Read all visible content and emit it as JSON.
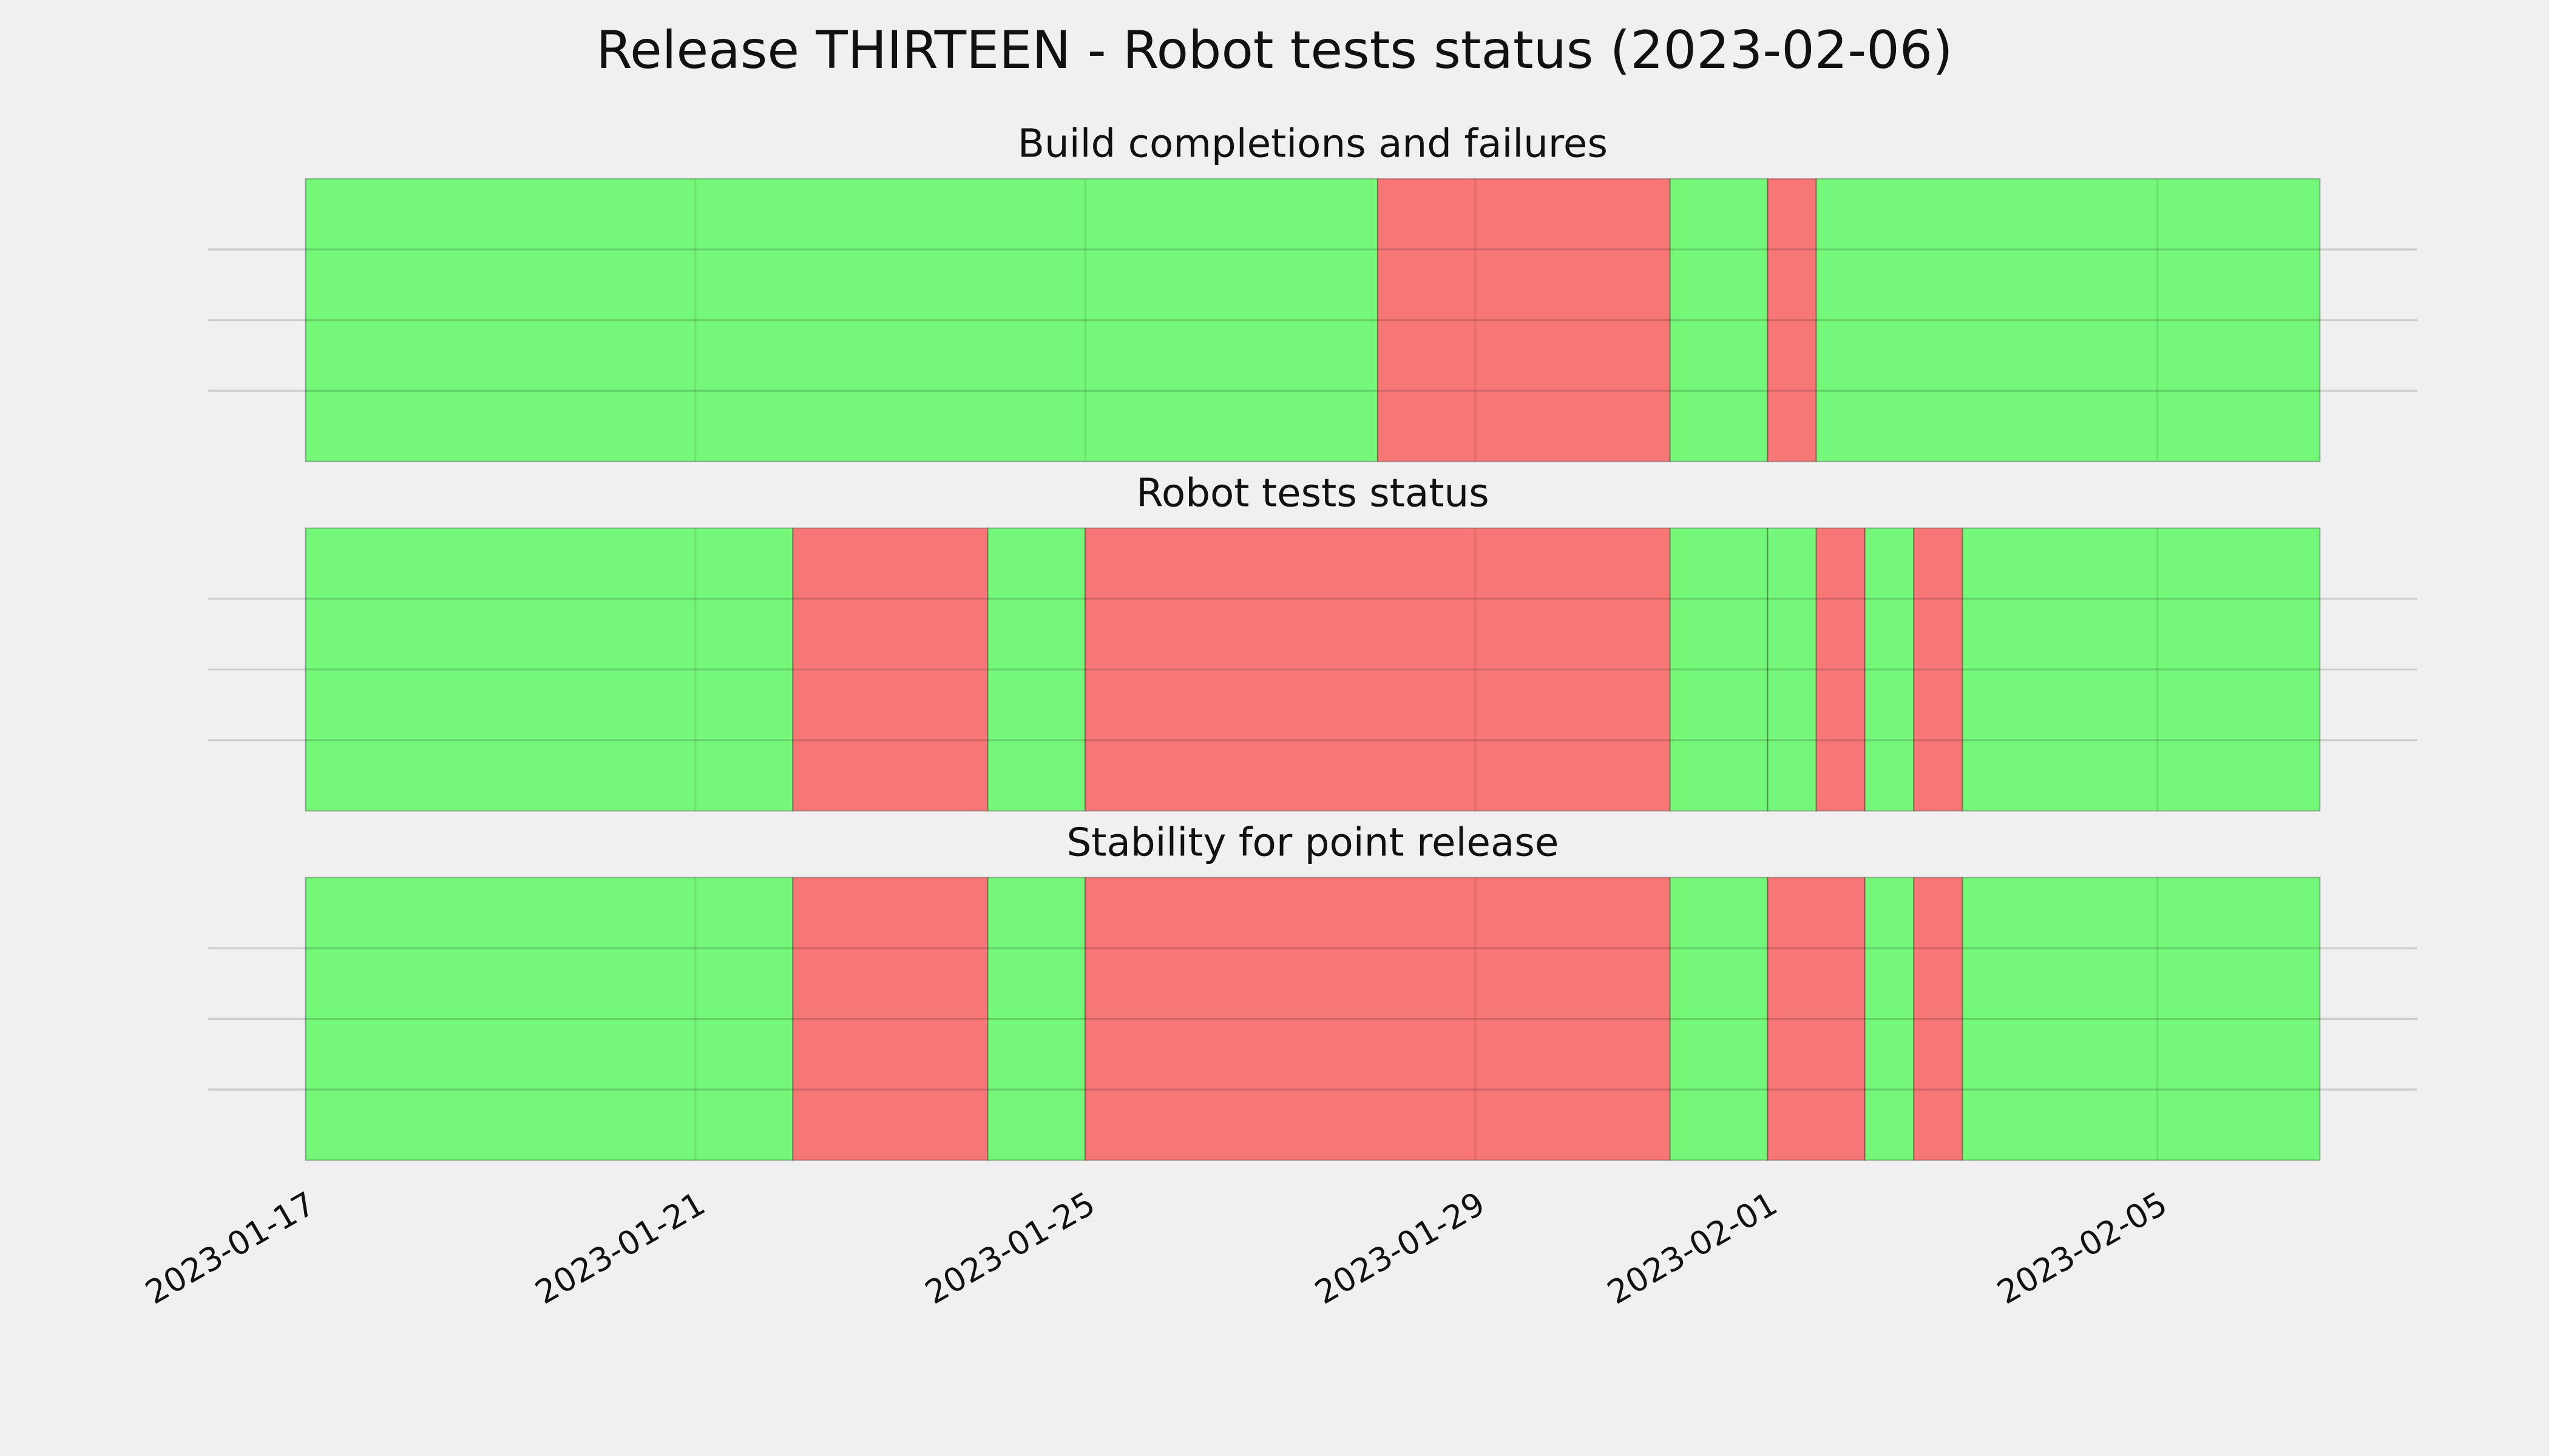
{
  "title": "Release THIRTEEN - Robot tests status (2023-02-06)",
  "chart_data": [
    {
      "type": "timeline",
      "title": "Build completions and failures",
      "xlim": [
        "2023-01-16",
        "2023-02-07T16:00"
      ],
      "xticks": [
        "2023-01-17",
        "2023-01-21",
        "2023-01-25",
        "2023-01-29",
        "2023-02-01",
        "2023-02-05"
      ],
      "ylim": [
        0,
        1
      ],
      "yticks": [
        0.25,
        0.5,
        0.75
      ],
      "grid": true,
      "segments": [
        {
          "start": "2023-01-17",
          "end": "2023-01-28",
          "color": "#75f779"
        },
        {
          "start": "2023-01-28",
          "end": "2023-01-31",
          "color": "#f77777"
        },
        {
          "start": "2023-01-31",
          "end": "2023-02-01",
          "color": "#75f779"
        },
        {
          "start": "2023-02-01",
          "end": "2023-02-01T12:00",
          "color": "#f77777"
        },
        {
          "start": "2023-02-01T12:00",
          "end": "2023-02-06T16:00",
          "color": "#75f779"
        }
      ]
    },
    {
      "type": "timeline",
      "title": "Robot tests status",
      "xlim": [
        "2023-01-16",
        "2023-02-07T16:00"
      ],
      "xticks": [
        "2023-01-17",
        "2023-01-21",
        "2023-01-25",
        "2023-01-29",
        "2023-02-01",
        "2023-02-05"
      ],
      "ylim": [
        0,
        1
      ],
      "yticks": [
        0.25,
        0.5,
        0.75
      ],
      "grid": true,
      "segments": [
        {
          "start": "2023-01-17",
          "end": "2023-01-22",
          "color": "#75f779"
        },
        {
          "start": "2023-01-22",
          "end": "2023-01-24",
          "color": "#f77777"
        },
        {
          "start": "2023-01-24",
          "end": "2023-01-25",
          "color": "#75f779"
        },
        {
          "start": "2023-01-25",
          "end": "2023-01-31",
          "color": "#f77777"
        },
        {
          "start": "2023-01-31",
          "end": "2023-02-01",
          "color": "#75f779"
        },
        {
          "start": "2023-02-01",
          "end": "2023-02-01T12:00",
          "color": "#75f779"
        },
        {
          "start": "2023-02-01T12:00",
          "end": "2023-02-02",
          "color": "#f77777"
        },
        {
          "start": "2023-02-02",
          "end": "2023-02-02T12:00",
          "color": "#75f779"
        },
        {
          "start": "2023-02-02T12:00",
          "end": "2023-02-03",
          "color": "#f77777"
        },
        {
          "start": "2023-02-03",
          "end": "2023-02-06T16:00",
          "color": "#75f779"
        }
      ]
    },
    {
      "type": "timeline",
      "title": "Stability for point release",
      "xlim": [
        "2023-01-16",
        "2023-02-07T16:00"
      ],
      "xticks": [
        "2023-01-17",
        "2023-01-21",
        "2023-01-25",
        "2023-01-29",
        "2023-02-01",
        "2023-02-05"
      ],
      "ylim": [
        0,
        1
      ],
      "yticks": [
        0.25,
        0.5,
        0.75
      ],
      "grid": true,
      "segments": [
        {
          "start": "2023-01-17",
          "end": "2023-01-22",
          "color": "#75f779"
        },
        {
          "start": "2023-01-22",
          "end": "2023-01-24",
          "color": "#f77777"
        },
        {
          "start": "2023-01-24",
          "end": "2023-01-25",
          "color": "#75f779"
        },
        {
          "start": "2023-01-25",
          "end": "2023-01-31",
          "color": "#f77777"
        },
        {
          "start": "2023-01-31",
          "end": "2023-02-01",
          "color": "#75f779"
        },
        {
          "start": "2023-02-01",
          "end": "2023-02-02",
          "color": "#f77777"
        },
        {
          "start": "2023-02-02",
          "end": "2023-02-02T12:00",
          "color": "#75f779"
        },
        {
          "start": "2023-02-02T12:00",
          "end": "2023-02-03",
          "color": "#f77777"
        },
        {
          "start": "2023-02-03",
          "end": "2023-02-06T16:00",
          "color": "#75f779"
        }
      ]
    }
  ]
}
